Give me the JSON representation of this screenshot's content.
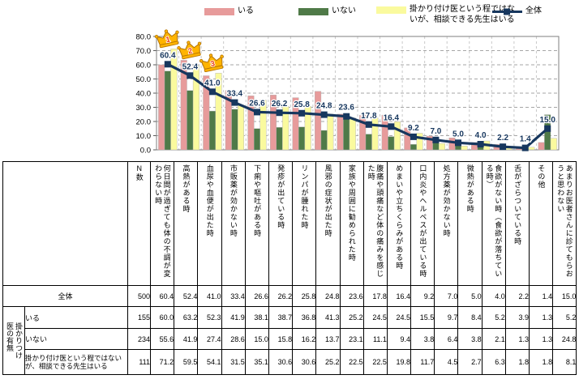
{
  "legend": {
    "items": [
      {
        "label": "いる",
        "color": "#E79B9B",
        "type": "bar"
      },
      {
        "label": "いない",
        "color": "#4F7A48",
        "type": "bar"
      },
      {
        "label": "掛かり付け医という程ではないが、相談できる先生はいる",
        "color": "#FAFA9E",
        "type": "bar"
      },
      {
        "label": "全体",
        "color": "#17375E",
        "type": "line"
      }
    ]
  },
  "chart_data": {
    "type": "bar",
    "title": "",
    "xlabel": "",
    "ylabel": "",
    "ylim": [
      0,
      80
    ],
    "ytick_step": 10,
    "grid": true,
    "legend_position": "top",
    "categories": [
      "何日間が過ぎても体の不調が変わらない時",
      "高熱がある時",
      "血尿や血便が出た時",
      "市販薬が効かない時",
      "下痢や嘔吐がある時",
      "発疹が出ている時",
      "リンパが腫れた時",
      "風邪の症状が出た時",
      "家族や周囲に勧められた時",
      "腹痛や頭痛など体の痛みを感じた時",
      "めまいや立ちくらみがある時",
      "口内炎やヘルペスが出ている時",
      "処方薬が効かない時",
      "微熱がある時",
      "食欲がない時（食欲が落ちている時）",
      "舌がざらついている時",
      "その他",
      "あまりお医者さんに診てもらおうと思わない"
    ],
    "series": [
      {
        "name": "いる",
        "type": "bar",
        "color": "#E79B9B",
        "values": [
          60.0,
          63.2,
          52.3,
          41.9,
          38.1,
          38.7,
          36.8,
          41.3,
          25.2,
          24.5,
          24.5,
          15.5,
          9.7,
          8.4,
          5.2,
          3.9,
          1.3,
          5.2
        ]
      },
      {
        "name": "いない",
        "type": "bar",
        "color": "#4F7A48",
        "values": [
          55.6,
          41.9,
          27.4,
          28.6,
          15.0,
          15.8,
          16.2,
          13.7,
          23.1,
          11.1,
          9.4,
          3.8,
          6.4,
          3.8,
          2.1,
          1.3,
          1.3,
          24.8
        ]
      },
      {
        "name": "掛かり付け医という程ではないが、相談できる先生はいる",
        "type": "bar",
        "color": "#FAFA9E",
        "values": [
          71.2,
          59.5,
          54.1,
          31.5,
          35.1,
          30.6,
          30.6,
          25.2,
          22.5,
          22.5,
          19.8,
          11.7,
          4.5,
          2.7,
          6.3,
          1.8,
          1.8,
          8.1
        ]
      },
      {
        "name": "全体",
        "type": "line",
        "color": "#17375E",
        "data_labels": true,
        "values": [
          60.4,
          52.4,
          41.0,
          33.4,
          26.6,
          26.2,
          25.8,
          24.8,
          23.6,
          17.8,
          16.4,
          9.2,
          7.0,
          5.0,
          4.0,
          2.2,
          1.4,
          15.0
        ]
      }
    ],
    "rank_crowns": [
      {
        "category_index": 0,
        "rank": "1"
      },
      {
        "category_index": 1,
        "rank": "2"
      },
      {
        "category_index": 2,
        "rank": "3"
      }
    ],
    "crown_style": {
      "gold": "#FFB400",
      "outline": "#B27200",
      "number_color": "#E8380D"
    }
  },
  "table": {
    "n_header": "N数",
    "row_group_label": "掛かりつけ\n医の有無",
    "rows": [
      {
        "label": "全体",
        "in_group": false,
        "n": "500",
        "values": [
          "60.4",
          "52.4",
          "41.0",
          "33.4",
          "26.6",
          "26.2",
          "25.8",
          "24.8",
          "23.6",
          "17.8",
          "16.4",
          "9.2",
          "7.0",
          "5.0",
          "4.0",
          "2.2",
          "1.4",
          "15.0"
        ]
      },
      {
        "label": "いる",
        "in_group": true,
        "n": "155",
        "values": [
          "60.0",
          "63.2",
          "52.3",
          "41.9",
          "38.1",
          "38.7",
          "36.8",
          "41.3",
          "25.2",
          "24.5",
          "24.5",
          "15.5",
          "9.7",
          "8.4",
          "5.2",
          "3.9",
          "1.3",
          "5.2"
        ]
      },
      {
        "label": "いない",
        "in_group": true,
        "n": "234",
        "values": [
          "55.6",
          "41.9",
          "27.4",
          "28.6",
          "15.0",
          "15.8",
          "16.2",
          "13.7",
          "23.1",
          "11.1",
          "9.4",
          "3.8",
          "6.4",
          "3.8",
          "2.1",
          "1.3",
          "1.3",
          "24.8"
        ]
      },
      {
        "label": "掛かり付け医という程ではないが、相談できる先生はいる",
        "in_group": true,
        "n": "111",
        "values": [
          "71.2",
          "59.5",
          "54.1",
          "31.5",
          "35.1",
          "30.6",
          "30.6",
          "25.2",
          "22.5",
          "22.5",
          "19.8",
          "11.7",
          "4.5",
          "2.7",
          "6.3",
          "1.8",
          "1.8",
          "8.1"
        ]
      }
    ]
  }
}
